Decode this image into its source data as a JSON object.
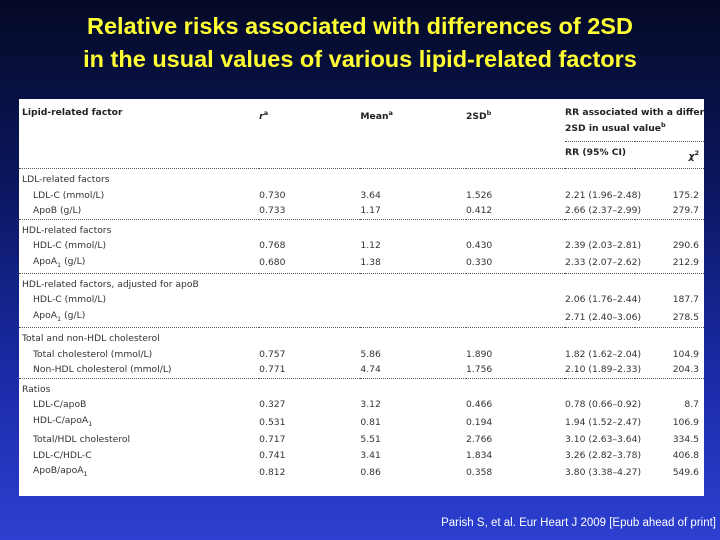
{
  "title": {
    "line1": "Relative risks associated with differences of 2SD",
    "line2": "in the usual values of various lipid-related factors"
  },
  "table": {
    "headers": {
      "factor": "Lipid-related factor",
      "r": "r",
      "r_sup": "a",
      "mean": "Mean",
      "mean_sup": "a",
      "sd": "2SD",
      "sd_sup": "b",
      "rr_line1": "RR associated with a difference of",
      "rr_line2": "2SD in usual value",
      "rr_sup": "b",
      "rr_ci": "RR (95% CI)",
      "chi": "χ",
      "chi_sup": "2"
    },
    "groups": [
      {
        "label": "LDL-related factors",
        "rows": [
          {
            "name": "LDL-C (mmol/L)",
            "r": "0.730",
            "mean": "3.64",
            "sd": "1.526",
            "rr": "2.21 (1.96–2.48)",
            "chi": "175.2"
          },
          {
            "name": "ApoB (g/L)",
            "r": "0.733",
            "mean": "1.17",
            "sd": "0.412",
            "rr": "2.66 (2.37–2.99)",
            "chi": "279.7"
          }
        ]
      },
      {
        "label": "HDL-related factors",
        "rows": [
          {
            "name": "HDL-C (mmol/L)",
            "r": "0.768",
            "mean": "1.12",
            "sd": "0.430",
            "rr": "2.39 (2.03–2.81)",
            "chi": "290.6"
          },
          {
            "name": "ApoA",
            "name_sub": "1",
            "name_suffix": " (g/L)",
            "r": "0.680",
            "mean": "1.38",
            "sd": "0.330",
            "rr": "2.33 (2.07–2.62)",
            "chi": "212.9"
          }
        ]
      },
      {
        "label": "HDL-related factors, adjusted for apoB",
        "rows": [
          {
            "name": "HDL-C (mmol/L)",
            "r": "",
            "mean": "",
            "sd": "",
            "rr": "2.06 (1.76–2.44)",
            "chi": "187.7"
          },
          {
            "name": "ApoA",
            "name_sub": "1",
            "name_suffix": " (g/L)",
            "r": "",
            "mean": "",
            "sd": "",
            "rr": "2.71 (2.40–3.06)",
            "chi": "278.5"
          }
        ]
      },
      {
        "label": "Total and non-HDL cholesterol",
        "rows": [
          {
            "name": "Total cholesterol (mmol/L)",
            "r": "0.757",
            "mean": "5.86",
            "sd": "1.890",
            "rr": "1.82 (1.62–2.04)",
            "chi": "104.9"
          },
          {
            "name": "Non-HDL cholesterol (mmol/L)",
            "r": "0.771",
            "mean": "4.74",
            "sd": "1.756",
            "rr": "2.10 (1.89–2.33)",
            "chi": "204.3"
          }
        ]
      },
      {
        "label": "Ratios",
        "rows": [
          {
            "name": "LDL-C/apoB",
            "r": "0.327",
            "mean": "3.12",
            "sd": "0.466",
            "rr": "0.78 (0.66–0.92)",
            "chi": "8.7"
          },
          {
            "name": "HDL-C/apoA",
            "name_sub": "1",
            "name_suffix": "",
            "r": "0.531",
            "mean": "0.81",
            "sd": "0.194",
            "rr": "1.94 (1.52–2.47)",
            "chi": "106.9"
          },
          {
            "name": "Total/HDL cholesterol",
            "r": "0.717",
            "mean": "5.51",
            "sd": "2.766",
            "rr": "3.10 (2.63–3.64)",
            "chi": "334.5"
          },
          {
            "name": "LDL-C/HDL-C",
            "r": "0.741",
            "mean": "3.41",
            "sd": "1.834",
            "rr": "3.26 (2.82–3.78)",
            "chi": "406.8"
          },
          {
            "name": "ApoB/apoA",
            "name_sub": "1",
            "name_suffix": "",
            "r": "0.812",
            "mean": "0.86",
            "sd": "0.358",
            "rr": "3.80 (3.38–4.27)",
            "chi": "549.6"
          }
        ]
      }
    ]
  },
  "footer": "Parish S, et al. Eur Heart J 2009 [Epub ahead of print]",
  "colors": {
    "title": "#ffff33",
    "background_top": "#050a26",
    "background_bottom": "#2d3fd0",
    "footer": "#ffffff"
  }
}
